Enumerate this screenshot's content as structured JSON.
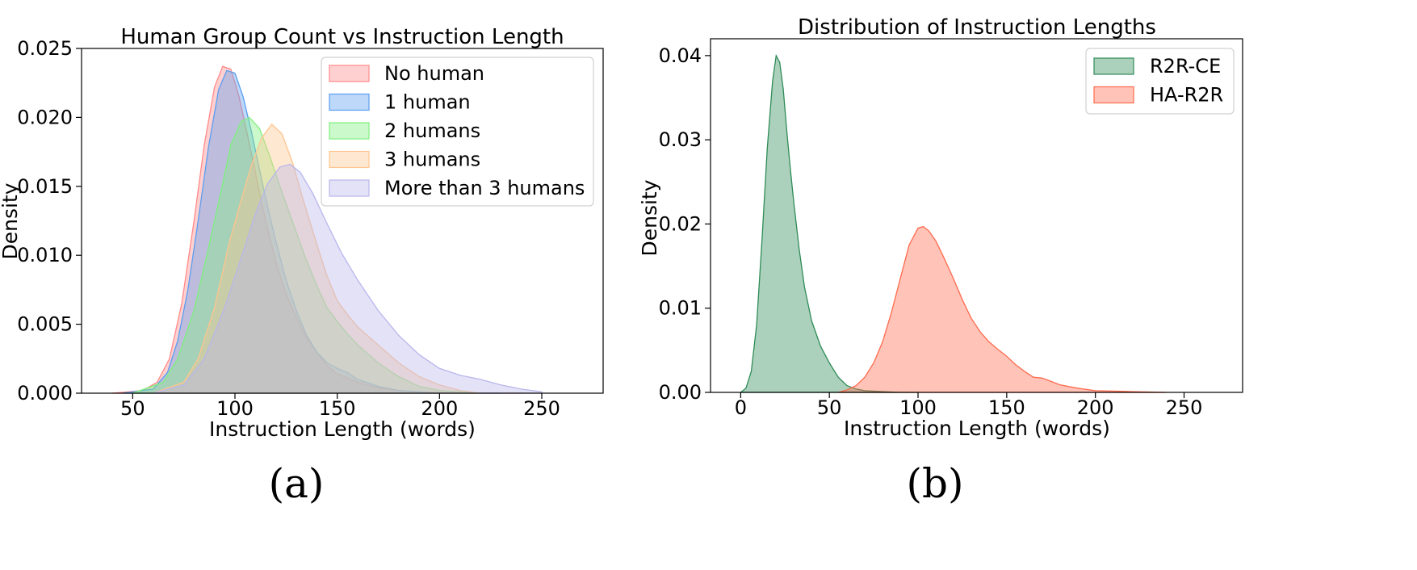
{
  "chart_data": [
    {
      "panel_label": "(a)",
      "type": "area",
      "title": "Human Group Count vs Instruction Length",
      "xlabel": "Instruction Length (words)",
      "ylabel": "Density",
      "xlim": [
        25,
        280
      ],
      "ylim": [
        0,
        0.025
      ],
      "xticks": [
        "50",
        "100",
        "150",
        "200",
        "250"
      ],
      "yticks": [
        "0.000",
        "0.005",
        "0.010",
        "0.015",
        "0.020",
        "0.025"
      ],
      "grid": false,
      "legend_position": "top-right",
      "series": [
        {
          "name": "No human",
          "color": "#ff8a8a",
          "x": [
            40,
            55,
            62,
            68,
            74,
            80,
            85,
            90,
            94,
            98,
            102,
            106,
            110,
            115,
            120,
            125,
            130,
            135,
            140,
            145,
            150,
            160,
            170,
            180,
            190,
            200,
            220,
            240
          ],
          "y": [
            0,
            0.0002,
            0.0008,
            0.0025,
            0.0065,
            0.0125,
            0.018,
            0.0222,
            0.0237,
            0.0235,
            0.0215,
            0.0188,
            0.016,
            0.0125,
            0.0095,
            0.0072,
            0.0055,
            0.004,
            0.003,
            0.002,
            0.0014,
            0.0008,
            0.0004,
            0.0002,
            0.0001,
            5e-05,
            0,
            0
          ]
        },
        {
          "name": "1 human",
          "color": "#5b9ef0",
          "x": [
            45,
            60,
            67,
            72,
            77,
            82,
            87,
            92,
            96,
            100,
            104,
            108,
            112,
            116,
            120,
            125,
            130,
            135,
            140,
            145,
            150,
            155,
            160,
            170,
            180,
            200,
            230
          ],
          "y": [
            0,
            0.0003,
            0.0015,
            0.0038,
            0.0075,
            0.0125,
            0.0178,
            0.022,
            0.0234,
            0.0232,
            0.0215,
            0.019,
            0.0162,
            0.0135,
            0.011,
            0.0082,
            0.006,
            0.0042,
            0.003,
            0.0022,
            0.0018,
            0.0015,
            0.001,
            0.0005,
            0.0002,
            0,
            0
          ]
        },
        {
          "name": "2 humans",
          "color": "#7ff07f",
          "x": [
            50,
            65,
            72,
            80,
            87,
            93,
            98,
            103,
            107,
            112,
            117,
            122,
            128,
            134,
            140,
            145,
            150,
            155,
            160,
            170,
            180,
            190,
            200,
            220
          ],
          "y": [
            0,
            0.0008,
            0.0025,
            0.006,
            0.0105,
            0.0145,
            0.018,
            0.0197,
            0.02,
            0.0192,
            0.0172,
            0.015,
            0.0125,
            0.01,
            0.0078,
            0.0062,
            0.0052,
            0.0043,
            0.0035,
            0.0022,
            0.0012,
            0.0005,
            0.0002,
            0
          ]
        },
        {
          "name": "3 humans",
          "color": "#ffc58f",
          "x": [
            60,
            75,
            82,
            90,
            97,
            103,
            108,
            113,
            118,
            123,
            128,
            133,
            140,
            145,
            150,
            155,
            160,
            170,
            180,
            190,
            200,
            210,
            220
          ],
          "y": [
            0,
            0.0008,
            0.0025,
            0.0062,
            0.0108,
            0.014,
            0.0165,
            0.0185,
            0.0195,
            0.0188,
            0.0168,
            0.0142,
            0.0108,
            0.0085,
            0.0067,
            0.0057,
            0.0048,
            0.0035,
            0.0022,
            0.0012,
            0.0006,
            0.0002,
            0
          ]
        },
        {
          "name": "More than 3 humans",
          "color": "#b8b6ec",
          "x": [
            60,
            75,
            85,
            95,
            103,
            110,
            116,
            122,
            127,
            132,
            138,
            145,
            152,
            160,
            170,
            180,
            190,
            200,
            210,
            220,
            230,
            240,
            250
          ],
          "y": [
            0,
            0.0006,
            0.0025,
            0.0062,
            0.0098,
            0.013,
            0.0152,
            0.0164,
            0.0166,
            0.016,
            0.0145,
            0.0123,
            0.0102,
            0.0082,
            0.006,
            0.0042,
            0.0028,
            0.0018,
            0.0013,
            0.001,
            0.0006,
            0.0003,
            0.0001
          ]
        }
      ]
    },
    {
      "panel_label": "(b)",
      "type": "area",
      "title": "Distribution of Instruction Lengths",
      "xlabel": "Instruction Length (words)",
      "ylabel": "Density",
      "xlim": [
        -17,
        283
      ],
      "ylim": [
        0,
        0.042
      ],
      "xticks": [
        "0",
        "50",
        "100",
        "150",
        "200",
        "250"
      ],
      "yticks": [
        "0.00",
        "0.01",
        "0.02",
        "0.03",
        "0.04"
      ],
      "grid": false,
      "legend_position": "top-right",
      "series": [
        {
          "name": "R2R-CE",
          "color": "#2e8b57",
          "x": [
            0,
            3,
            6,
            9,
            12,
            15,
            18,
            20,
            22,
            24,
            26,
            28,
            30,
            33,
            36,
            40,
            45,
            50,
            55,
            60,
            65,
            70,
            80,
            90,
            100
          ],
          "y": [
            0,
            0.0005,
            0.0025,
            0.008,
            0.018,
            0.029,
            0.037,
            0.04,
            0.0392,
            0.036,
            0.031,
            0.0265,
            0.0225,
            0.017,
            0.0125,
            0.0085,
            0.0055,
            0.0035,
            0.0018,
            0.0008,
            0.0004,
            0.0002,
            0.0001,
            0,
            0
          ]
        },
        {
          "name": "HA-R2R",
          "color": "#ff6a4d",
          "x": [
            55,
            60,
            65,
            70,
            75,
            80,
            85,
            90,
            95,
            100,
            103,
            106,
            110,
            115,
            120,
            125,
            130,
            135,
            140,
            145,
            150,
            155,
            160,
            165,
            170,
            175,
            180,
            190,
            200,
            220,
            240
          ],
          "y": [
            0,
            0.0003,
            0.0008,
            0.0018,
            0.0035,
            0.006,
            0.0095,
            0.0135,
            0.0175,
            0.0195,
            0.0197,
            0.0192,
            0.018,
            0.0158,
            0.0135,
            0.011,
            0.0088,
            0.0072,
            0.006,
            0.0051,
            0.0043,
            0.0033,
            0.0025,
            0.0018,
            0.0017,
            0.0013,
            0.0009,
            0.0005,
            0.0002,
            0.0001,
            0
          ]
        }
      ]
    }
  ]
}
